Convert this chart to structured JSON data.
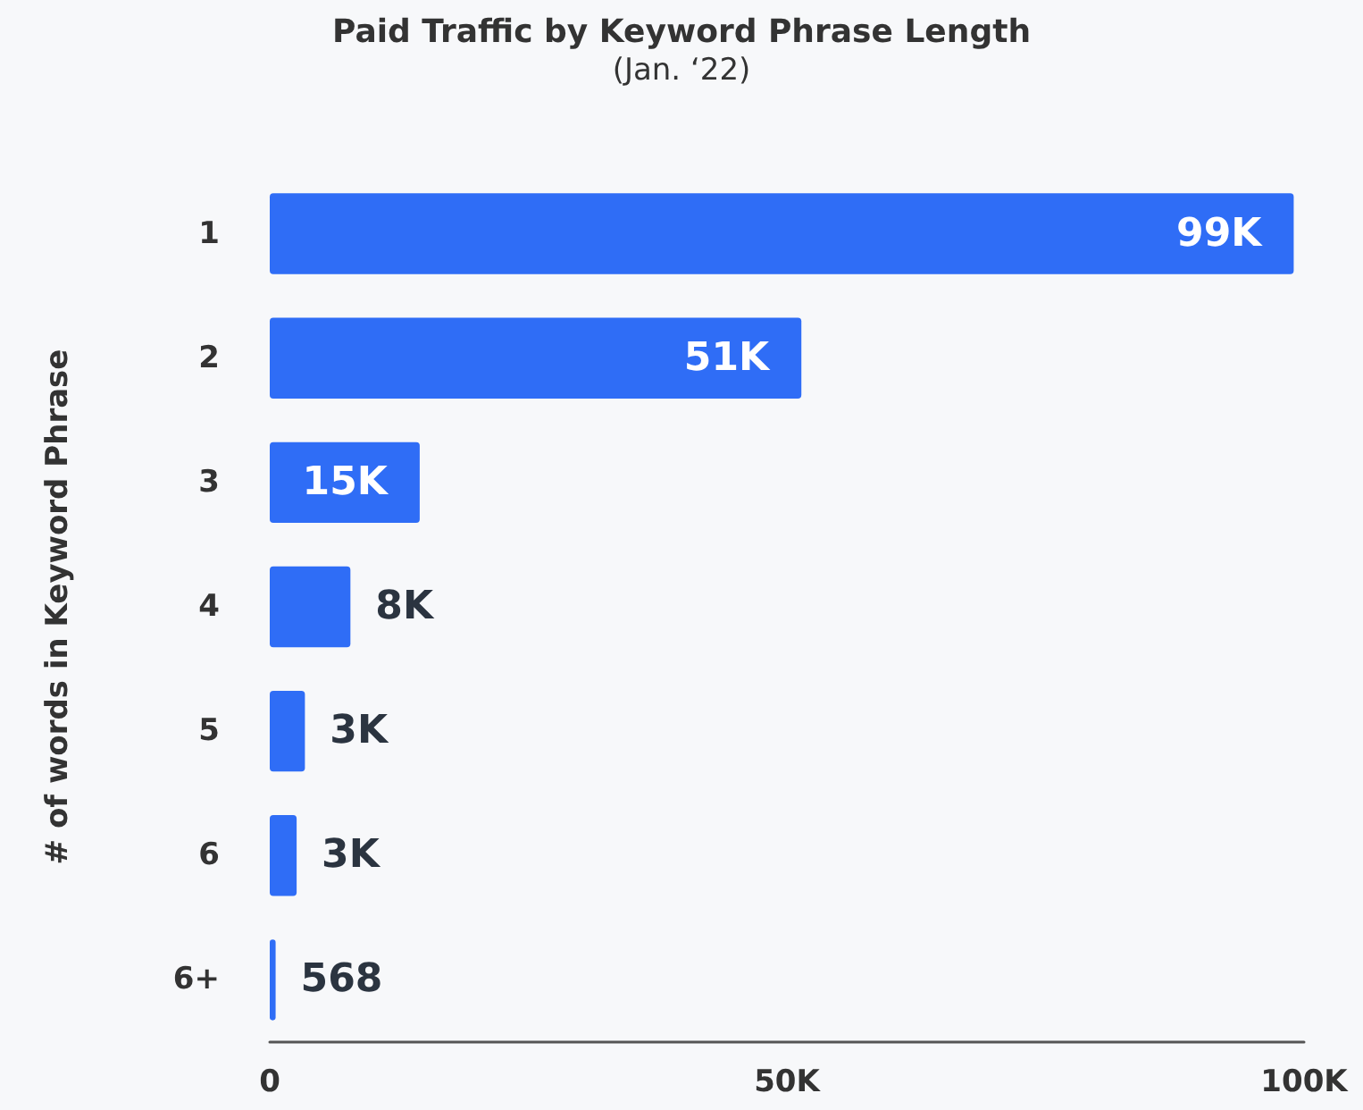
{
  "chart_data": {
    "type": "bar",
    "orientation": "horizontal",
    "title": "Paid Traffic by Keyword Phrase Length",
    "subtitle": "(Jan. ‘22)",
    "ylabel": "# of words in Keyword Phrase",
    "categories": [
      "1",
      "2",
      "3",
      "4",
      "5",
      "6",
      "6+"
    ],
    "values": [
      99000,
      51400,
      14500,
      7800,
      3400,
      2600,
      568
    ],
    "value_labels": [
      "99K",
      "51K",
      "15K",
      "8K",
      "3K",
      "3K",
      "568"
    ],
    "color": "#2f6df6",
    "xlim": [
      0,
      100000
    ],
    "xticks": [
      0,
      {
        "value": 50000,
        "label": "50K"
      },
      {
        "value": 100000,
        "label": "100K"
      }
    ],
    "grid": false
  }
}
